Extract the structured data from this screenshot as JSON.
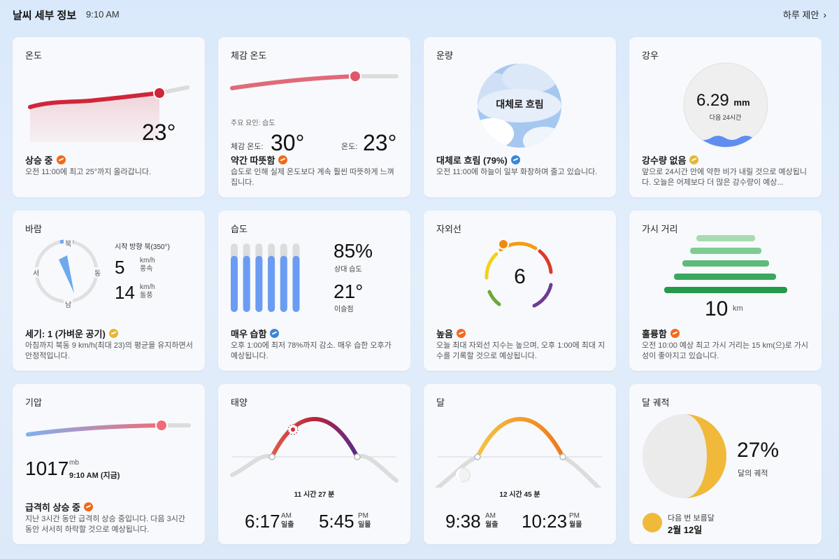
{
  "header": {
    "title": "날씨 세부 정보",
    "time": "9:10 AM",
    "suggest_label": "하루 제안"
  },
  "temperature": {
    "title": "온도",
    "value": "23°",
    "status": "상승 중",
    "desc": "오전 11:00에 최고 25°까지 올라갑니다.",
    "badge": "rising-icon"
  },
  "feels_like": {
    "title": "체감 온도",
    "factor": "주요 요인: 습도",
    "feels_label": "체감 온도:",
    "feels_value": "30°",
    "temp_label": "온도:",
    "temp_value": "23°",
    "status": "약간 따뜻함",
    "desc": "습도로 인해 실제 온도보다 계속 훨씬 따뜻하게 느껴집니다."
  },
  "cloud": {
    "title": "운량",
    "center": "대체로 흐림",
    "status": "대체로 흐림 (79%)",
    "desc": "오전 11:00에 하늘이 일부 화창하며 줄고 있습니다."
  },
  "precip": {
    "title": "강우",
    "value": "6.29",
    "unit": "mm",
    "period": "다음 24시간",
    "status": "강수량 없음",
    "desc": "앞으로 24시간 안에 약한 비가 내릴 것으로 예상됩니다. 오늘은 어제보다 더 많은 강수량이 예상..."
  },
  "wind": {
    "title": "바람",
    "n": "북",
    "s": "남",
    "e": "동",
    "w": "서",
    "direction": "시작 방향 북(350°)",
    "speed": "5",
    "speed_unit": "km/h",
    "speed_label": "풍속",
    "gust": "14",
    "gust_unit": "km/h",
    "gust_label": "돌풍",
    "status": "세기: 1 (가벼운 공기)",
    "desc": "아침까지 북동 9 km/h(최대 23)의 평균을 유지하면서 안정적입니다."
  },
  "humidity": {
    "title": "습도",
    "value": "85%",
    "value_label": "상대 습도",
    "dew": "21°",
    "dew_label": "이슬점",
    "status": "매우 습함",
    "desc": "오후 1:00에 최저 78%까지 감소. 매우 습한 오후가 예상됩니다.",
    "bar_levels": [
      0.82,
      0.82,
      0.82,
      0.82,
      0.82,
      0.82
    ]
  },
  "uv": {
    "title": "자외선",
    "value": "6",
    "status": "높음",
    "desc": "오늘 최대 자외선 지수는 높으며, 오후 1:00에 최대 지수를 기록할 것으로 예상됩니다."
  },
  "visibility": {
    "title": "가시 거리",
    "value": "10",
    "unit": "km",
    "status": "훌륭함",
    "desc": "오전 10:00 예상 최고 가시 거리는 15 km(으)로 가시성이 좋아지고 있습니다."
  },
  "pressure": {
    "title": "기압",
    "value": "1017",
    "unit": "mb",
    "when": "9:10 AM (지금)",
    "status": "급격히 상승 중",
    "desc": "지난 3시간 동안 급격히 상승 중입니다. 다음 3시간 동안 서서히 하락할 것으로 예상됩니다."
  },
  "sun": {
    "title": "태양",
    "duration": "11 시간 27 분",
    "rise": "6:17",
    "rise_ampm": "AM",
    "rise_label": "일출",
    "set": "5:45",
    "set_ampm": "PM",
    "set_label": "일몰"
  },
  "moon": {
    "title": "달",
    "duration": "12 시간 45 분",
    "rise": "9:38",
    "rise_ampm": "AM",
    "rise_label": "월출",
    "set": "10:23",
    "set_ampm": "PM",
    "set_label": "월몰"
  },
  "moon_phase": {
    "title": "달 궤적",
    "value": "27%",
    "label": "달의 궤적",
    "next_label": "다음 번 보름달",
    "next_date": "2월 12일"
  },
  "colors": {
    "accent_red": "#d0263a",
    "orange": "#f06a1c",
    "blue_bar": "#6b9cf3",
    "green": "#2ea055"
  }
}
